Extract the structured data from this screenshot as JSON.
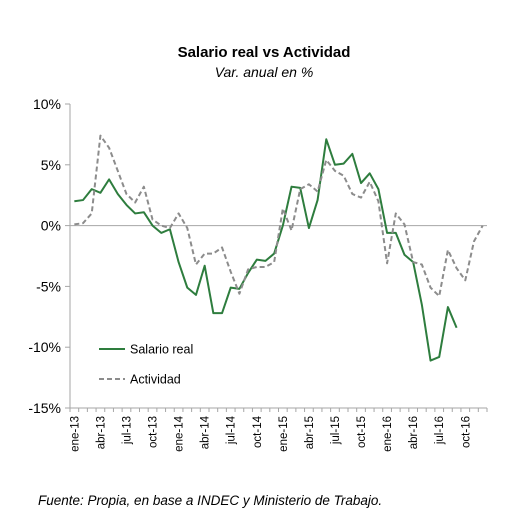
{
  "chart_data": {
    "type": "line",
    "title": "Salario real vs Actividad",
    "subtitle": "Var. anual en %",
    "source": "Fuente: Propia, en base a INDEC y Ministerio de Trabajo.",
    "yticks": [
      "10%",
      "5%",
      "0%",
      "-5%",
      "-10%",
      "-15%"
    ],
    "yticks_values": [
      10,
      5,
      0,
      -5,
      -10,
      -15
    ],
    "ylim": [
      -15,
      10
    ],
    "x": [
      "ene-13",
      "feb-13",
      "mar-13",
      "abr-13",
      "may-13",
      "jun-13",
      "jul-13",
      "ago-13",
      "sep-13",
      "oct-13",
      "nov-13",
      "dic-13",
      "ene-14",
      "feb-14",
      "mar-14",
      "abr-14",
      "may-14",
      "jun-14",
      "jul-14",
      "ago-14",
      "sep-14",
      "oct-14",
      "nov-14",
      "dic-14",
      "ene-15",
      "feb-15",
      "mar-15",
      "abr-15",
      "may-15",
      "jun-15",
      "jul-15",
      "ago-15",
      "sep-15",
      "oct-15",
      "nov-15",
      "dic-15",
      "ene-16",
      "feb-16",
      "mar-16",
      "abr-16",
      "may-16",
      "jun-16",
      "jul-16",
      "ago-16",
      "sep-16",
      "oct-16",
      "nov-16",
      "dic-16"
    ],
    "xtick_labels": [
      {
        "index": 0,
        "label": "ene-13"
      },
      {
        "index": 3,
        "label": "abr-13"
      },
      {
        "index": 6,
        "label": "jul-13"
      },
      {
        "index": 9,
        "label": "oct-13"
      },
      {
        "index": 12,
        "label": "ene-14"
      },
      {
        "index": 15,
        "label": "abr-14"
      },
      {
        "index": 18,
        "label": "jul-14"
      },
      {
        "index": 21,
        "label": "oct-14"
      },
      {
        "index": 24,
        "label": "ene-15"
      },
      {
        "index": 27,
        "label": "abr-15"
      },
      {
        "index": 30,
        "label": "jul-15"
      },
      {
        "index": 33,
        "label": "oct-15"
      },
      {
        "index": 36,
        "label": "ene-16"
      },
      {
        "index": 39,
        "label": "abr-16"
      },
      {
        "index": 42,
        "label": "jul-16"
      },
      {
        "index": 45,
        "label": "oct-16"
      }
    ],
    "series": [
      {
        "name": "Salario real",
        "color": "#2e7d3e",
        "dash": "solid",
        "values": [
          2.0,
          2.1,
          3.0,
          2.7,
          3.8,
          2.6,
          1.7,
          1.0,
          1.1,
          0.0,
          -0.6,
          -0.3,
          -3.0,
          -5.1,
          -5.7,
          -3.3,
          -7.2,
          -7.2,
          -5.1,
          -5.2,
          -3.9,
          -2.8,
          -2.9,
          -2.3,
          0.0,
          3.2,
          3.1,
          -0.2,
          2.1,
          7.1,
          5.0,
          5.1,
          5.9,
          3.5,
          4.3,
          3.0,
          -0.6,
          -0.6,
          -2.4,
          -3.0,
          -6.5,
          -11.1,
          -10.8,
          -6.7,
          -8.4,
          null,
          null,
          null
        ]
      },
      {
        "name": "Actividad",
        "color": "#8c8c8c",
        "dash": "dashed",
        "values": [
          0.1,
          0.2,
          1.0,
          7.4,
          6.4,
          4.5,
          2.6,
          1.9,
          3.2,
          0.5,
          0.0,
          -0.2,
          1.0,
          -0.2,
          -3.2,
          -2.3,
          -2.3,
          -1.8,
          -3.8,
          -5.6,
          -3.6,
          -3.4,
          -3.4,
          -3.0,
          1.4,
          -0.4,
          3.0,
          3.4,
          2.8,
          5.4,
          4.5,
          4.1,
          2.6,
          2.3,
          3.6,
          2.0,
          -3.1,
          1.0,
          0.1,
          -3.0,
          -3.2,
          -5.1,
          -5.8,
          -2.0,
          -3.5,
          -4.5,
          -1.3,
          0.0
        ]
      }
    ],
    "legend": {
      "position": "bottom-left",
      "entries": [
        "Salario real",
        "Actividad"
      ]
    },
    "grid": false
  }
}
